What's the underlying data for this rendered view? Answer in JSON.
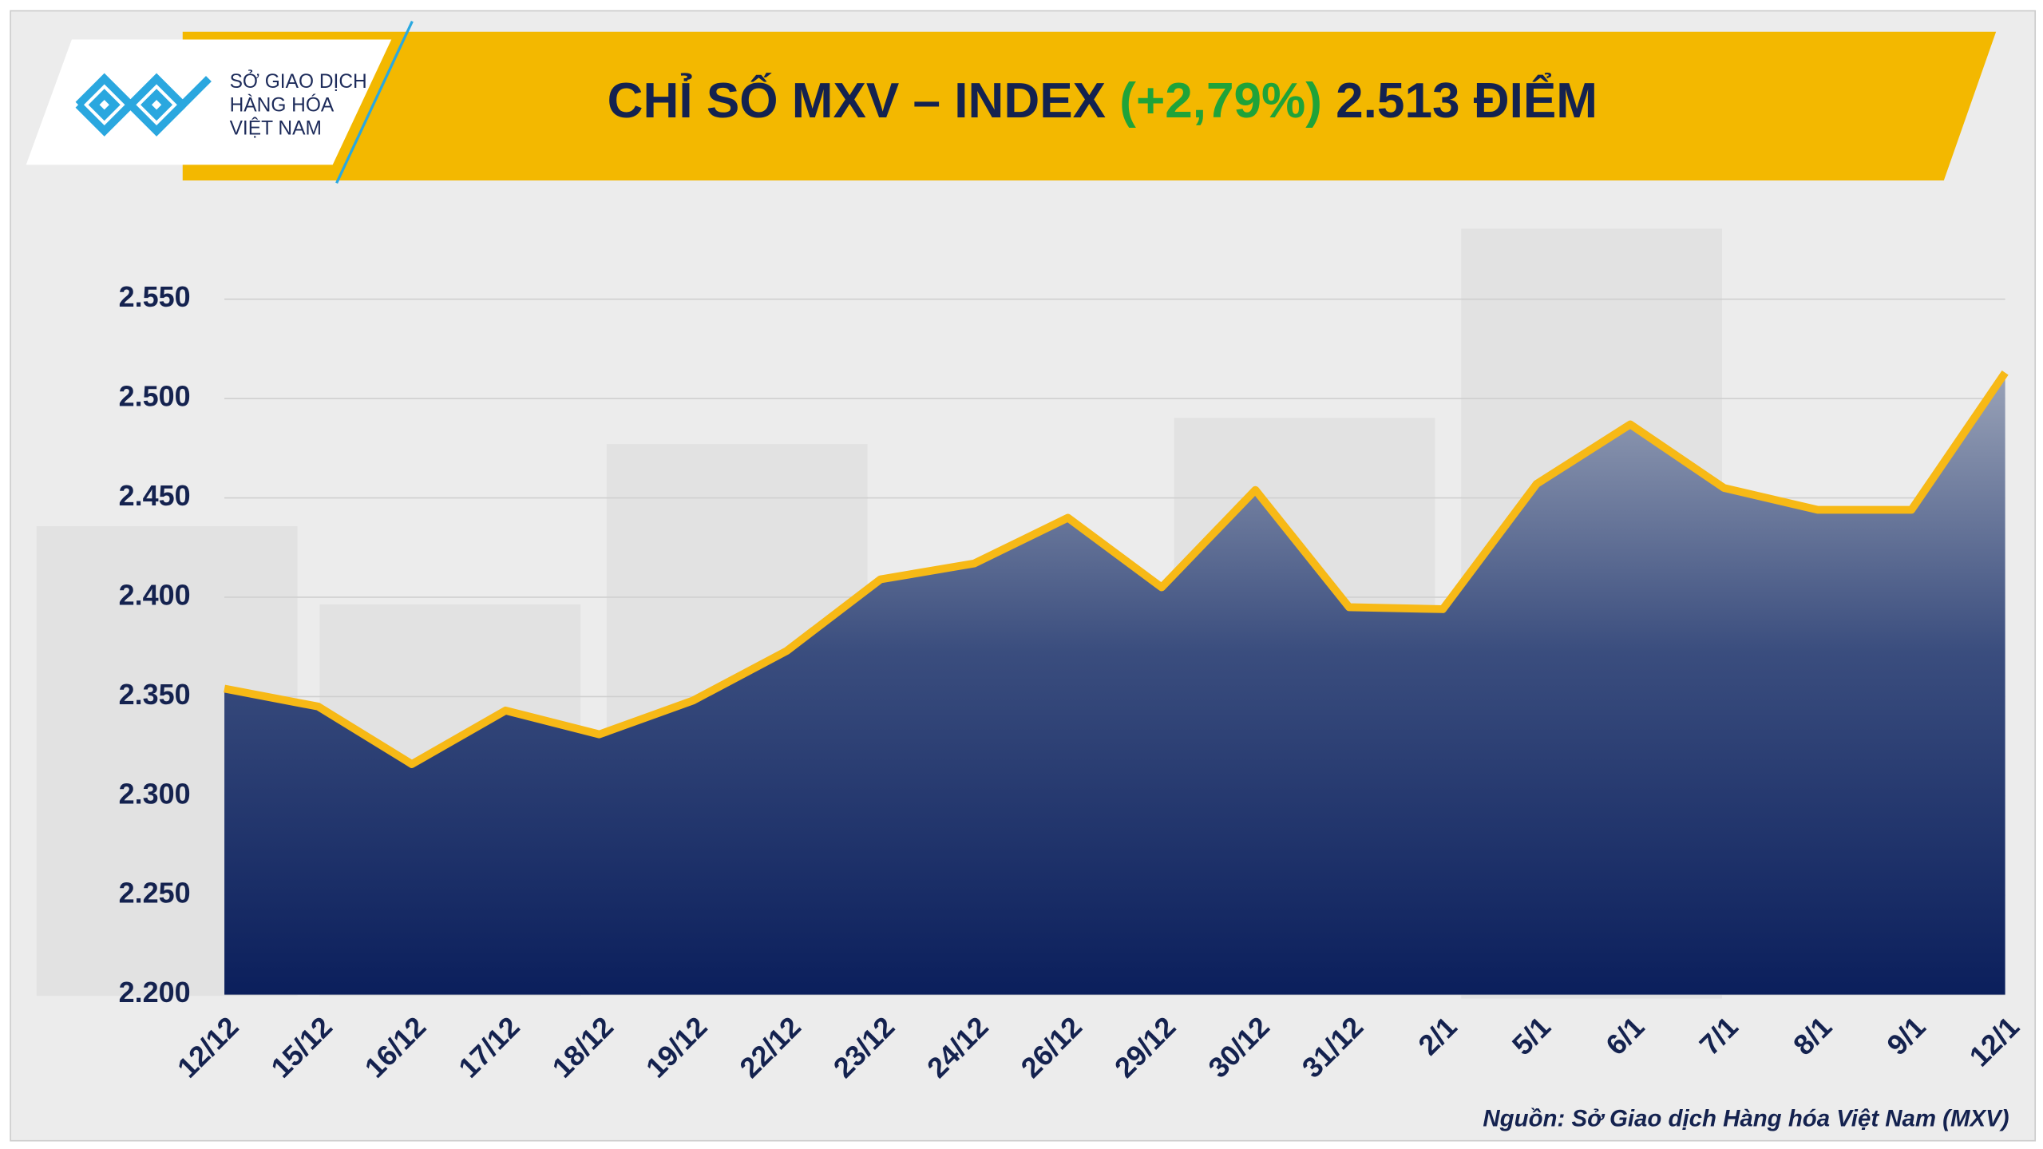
{
  "chart_data": {
    "type": "area",
    "title": "CHỈ SỐ MXV – INDEX",
    "title_change": "(+2,79%)",
    "title_value": "2.513 ĐIỂM",
    "logo_lines": [
      "SỞ GIAO DỊCH",
      "HÀNG HÓA",
      "VIỆT NAM"
    ],
    "source": "Nguồn: Sở Giao dịch Hàng hóa Việt Nam (MXV)",
    "categories": [
      "12/12",
      "15/12",
      "16/12",
      "17/12",
      "18/12",
      "19/12",
      "22/12",
      "23/12",
      "24/12",
      "26/12",
      "29/12",
      "30/12",
      "31/12",
      "2/1",
      "5/1",
      "6/1",
      "7/1",
      "8/1",
      "9/1",
      "12/1"
    ],
    "values": [
      2354,
      2345,
      2316,
      2343,
      2331,
      2348,
      2373,
      2409,
      2417,
      2440,
      2405,
      2454,
      2395,
      2394,
      2457,
      2487,
      2455,
      2444,
      2444,
      2513
    ],
    "color": "#f7b916",
    "ylim": [
      2200,
      2550
    ],
    "yticks": [
      {
        "value": 2200,
        "label": "2.200"
      },
      {
        "value": 2250,
        "label": "2.250"
      },
      {
        "value": 2300,
        "label": "2.300"
      },
      {
        "value": 2350,
        "label": "2.350"
      },
      {
        "value": 2400,
        "label": "2.400"
      },
      {
        "value": 2450,
        "label": "2.450"
      },
      {
        "value": 2500,
        "label": "2.500"
      },
      {
        "value": 2550,
        "label": "2.550"
      }
    ],
    "grid": true
  }
}
